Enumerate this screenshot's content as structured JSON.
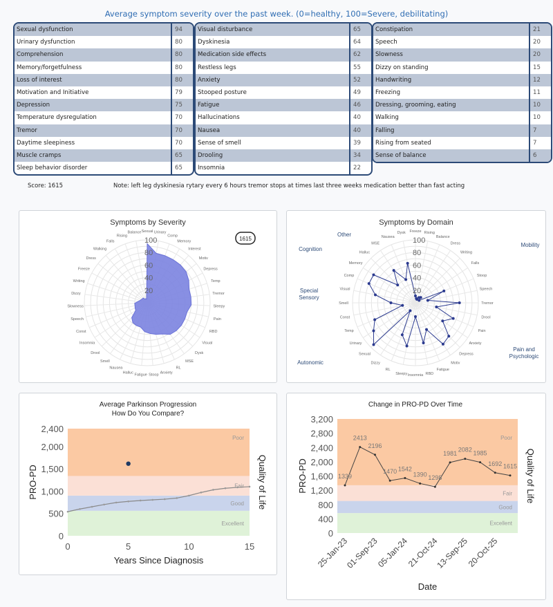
{
  "header": {
    "title": "Average symptom severity over the past week. (0=healthy, 100=Severe, debilitating)"
  },
  "table": {
    "columns": [
      [
        [
          "Sexual dysfunction",
          94
        ],
        [
          "Urinary dysfunction",
          80
        ],
        [
          "Comprehension",
          80
        ],
        [
          "Memory/forgetfulness",
          80
        ],
        [
          "Loss of interest",
          80
        ],
        [
          "Motivation and Initiative",
          79
        ],
        [
          "Depression",
          75
        ],
        [
          "Temperature dysregulation",
          70
        ],
        [
          "Tremor",
          70
        ],
        [
          "Daytime sleepiness",
          70
        ],
        [
          "Muscle cramps",
          65
        ],
        [
          "Sleep behavior disorder",
          65
        ]
      ],
      [
        [
          "Visual disturbance",
          65
        ],
        [
          "Dyskinesia",
          64
        ],
        [
          "Medication side effects",
          62
        ],
        [
          "Restless legs",
          55
        ],
        [
          "Anxiety",
          52
        ],
        [
          "Stooped posture",
          49
        ],
        [
          "Fatigue",
          46
        ],
        [
          "Hallucinations",
          40
        ],
        [
          "Nausea",
          40
        ],
        [
          "Sense of smell",
          39
        ],
        [
          "Drooling",
          34
        ],
        [
          "Insomnia",
          22
        ]
      ],
      [
        [
          "Constipation",
          21
        ],
        [
          "Speech",
          20
        ],
        [
          "Slowness",
          20
        ],
        [
          "Dizzy on standing",
          15
        ],
        [
          "Handwriting",
          12
        ],
        [
          "Freezing",
          11
        ],
        [
          "Dressing, grooming, eating",
          10
        ],
        [
          "Walking",
          10
        ],
        [
          "Falling",
          7
        ],
        [
          "Rising from seated",
          7
        ],
        [
          "Sense of balance",
          6
        ]
      ]
    ]
  },
  "score": {
    "label": "Score: 1615",
    "note": "Note: left leg dyskinesia rytary every 6 hours tremor stops at times last three weeks medication better than fast acting"
  },
  "chart_data": [
    {
      "type": "radar",
      "title": "Symptoms by Severity",
      "badge": "1615",
      "color": "#7b83e0",
      "categories": [
        "Sexual",
        "Urinary",
        "Comp",
        "Memory",
        "Interest",
        "Motiv",
        "Depress",
        "Temp",
        "Tremor",
        "Sleepy",
        "Pain",
        "RBD",
        "Visual",
        "Dysk",
        "MSE",
        "RL",
        "Anxiety",
        "Stoop",
        "Fatigue",
        "Halluc",
        "Nausea",
        "Smell",
        "Drool",
        "Insomnia",
        "Const",
        "Speech",
        "Slowness",
        "Dizzy",
        "Writing",
        "Freeze",
        "Dress",
        "Walking",
        "Falls",
        "Rising",
        "Balance"
      ],
      "values": [
        94,
        80,
        80,
        80,
        80,
        79,
        75,
        70,
        70,
        70,
        65,
        65,
        65,
        64,
        62,
        55,
        52,
        49,
        46,
        40,
        40,
        39,
        34,
        22,
        21,
        20,
        20,
        15,
        12,
        11,
        10,
        10,
        7,
        7,
        6
      ],
      "ticks": [
        20,
        40,
        60,
        80,
        100
      ],
      "range": [
        0,
        100
      ]
    },
    {
      "type": "radar",
      "title": "Symptoms by Domain",
      "color": "#2b3a8f",
      "categories": [
        "Freeze",
        "Rising",
        "Balance",
        "Dress",
        "Writing",
        "Falls",
        "Stoop",
        "Speech",
        "Tremor",
        "Drool",
        "Pain",
        "Anxiety",
        "Depress",
        "Motiv",
        "Fatigue",
        "RBD",
        "Insomnia",
        "Sleepy",
        "RL",
        "Dizzy",
        "Sexual",
        "Urinary",
        "Temp",
        "Const",
        "Smell",
        "Visual",
        "Comp",
        "Memory",
        "Halluc",
        "MSE",
        "Nausea",
        "Dysk"
      ],
      "values": [
        11,
        7,
        6,
        10,
        12,
        7,
        49,
        20,
        70,
        34,
        65,
        52,
        75,
        79,
        46,
        65,
        22,
        70,
        55,
        15,
        94,
        80,
        70,
        21,
        39,
        65,
        80,
        80,
        40,
        62,
        40,
        64
      ],
      "ticks": [
        20,
        40,
        60,
        80,
        100
      ],
      "range": [
        0,
        100
      ],
      "domains": [
        "Other",
        "Cognition",
        "Special Sensory",
        "Autonomic",
        "Mobility",
        "Pain and Psychologic"
      ]
    },
    {
      "type": "scatter",
      "title": "Average Parkinson Progression",
      "subtitle": "How Do You Compare?",
      "xlabel": "Years Since Diagnosis",
      "ylabel": "PRO-PD",
      "y2label": "Quality of Life",
      "xlim": [
        0,
        15
      ],
      "ylim": [
        0,
        2400
      ],
      "xticks": [
        "0",
        "5",
        "10",
        "15"
      ],
      "yticks": [
        0,
        500,
        1000,
        1500,
        2000,
        2400
      ],
      "bands": [
        {
          "name": "Excellent",
          "from": 0,
          "to": 560,
          "color": "#dff2d8"
        },
        {
          "name": "Good",
          "from": 560,
          "to": 900,
          "color": "#c9d4ec"
        },
        {
          "name": "Fair",
          "from": 900,
          "to": 1340,
          "color": "#fbe0d6"
        },
        {
          "name": "Poor",
          "from": 1340,
          "to": 2400,
          "color": "#fbc9a3"
        }
      ],
      "average_curve": {
        "x": [
          0,
          1,
          2,
          3,
          4,
          5,
          6,
          7,
          8,
          9,
          10,
          11,
          12,
          13,
          14,
          15
        ],
        "y": [
          540,
          600,
          650,
          700,
          745,
          770,
          790,
          805,
          820,
          845,
          900,
          970,
          1030,
          1065,
          1085,
          1100
        ]
      },
      "user_point": {
        "x": 5,
        "y": 1615
      }
    },
    {
      "type": "line",
      "title": "Change in PRO-PD Over Time",
      "xlabel": "Date",
      "ylabel": "PRO-PD",
      "y2label": "Quality of Life",
      "ylim": [
        0,
        3200
      ],
      "yticks": [
        0,
        400,
        800,
        1200,
        1600,
        2000,
        2400,
        2800,
        3200
      ],
      "xticklabels": [
        "25-Jan-23",
        "01-Sep-23",
        "05-Jan-24",
        "21-Oct-24",
        "13-Sep-25",
        "20-Oct-25"
      ],
      "values": [
        1339,
        2413,
        2196,
        1470,
        1542,
        1390,
        1298,
        1981,
        2082,
        1985,
        1692,
        1615
      ],
      "bands": [
        {
          "name": "Excellent",
          "from": 0,
          "to": 560,
          "color": "#dff2d8"
        },
        {
          "name": "Good",
          "from": 560,
          "to": 900,
          "color": "#c9d4ec"
        },
        {
          "name": "Fair",
          "from": 900,
          "to": 1340,
          "color": "#fbe0d6"
        },
        {
          "name": "Poor",
          "from": 1340,
          "to": 3200,
          "color": "#fbc9a3"
        }
      ]
    }
  ]
}
